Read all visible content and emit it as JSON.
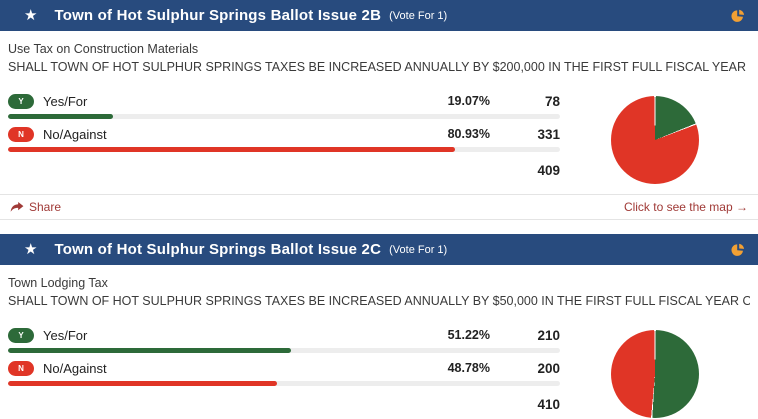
{
  "colors": {
    "header_bg": "#284b7e",
    "accent_orange": "#f2a033",
    "yes_green": "#2d6a39",
    "no_red": "#e03526",
    "link_red": "#a03a37",
    "track_gray": "#ededed"
  },
  "icons": {
    "star": "★",
    "header_pie": "pie-chart-icon",
    "share": "share-arrow-icon"
  },
  "cards": [
    {
      "title": "Town of Hot Sulphur Springs Ballot Issue 2B",
      "vote_note": "(Vote For 1)",
      "subtitle": "Use Tax on Construction Materials",
      "description": "SHALL TOWN OF HOT SULPHUR SPRINGS TAXES BE INCREASED ANNUALLY BY $200,000 IN THE FIRST FULL FISCAL YEAR OF COLLECTION COMMENCING JA...",
      "options": [
        {
          "key": "Y",
          "label": "Yes/For",
          "percent": "19.07%",
          "percent_value": 19.07,
          "votes": "78",
          "color_key": "yes"
        },
        {
          "key": "N",
          "label": "No/Against",
          "percent": "80.93%",
          "percent_value": 80.93,
          "votes": "331",
          "color_key": "no"
        }
      ],
      "total": "409",
      "footer": {
        "share": "Share",
        "map": "Click to see the map →"
      },
      "pie": {
        "type": "pie",
        "labels": [
          "Yes/For",
          "No/Against"
        ],
        "values": [
          19.07,
          80.93
        ]
      }
    },
    {
      "title": "Town of Hot Sulphur Springs Ballot Issue 2C",
      "vote_note": "(Vote For 1)",
      "subtitle": "Town Lodging Tax",
      "description": "SHALL TOWN OF HOT SULPHUR SPRINGS TAXES BE INCREASED ANNUALLY BY $50,000 IN THE FIRST FULL FISCAL YEAR OF COLLECTION COMMENCING JAN...",
      "options": [
        {
          "key": "Y",
          "label": "Yes/For",
          "percent": "51.22%",
          "percent_value": 51.22,
          "votes": "210",
          "color_key": "yes"
        },
        {
          "key": "N",
          "label": "No/Against",
          "percent": "48.78%",
          "percent_value": 48.78,
          "votes": "200",
          "color_key": "no"
        }
      ],
      "total": "410",
      "pie": {
        "type": "pie",
        "labels": [
          "Yes/For",
          "No/Against"
        ],
        "values": [
          51.22,
          48.78
        ]
      }
    }
  ]
}
